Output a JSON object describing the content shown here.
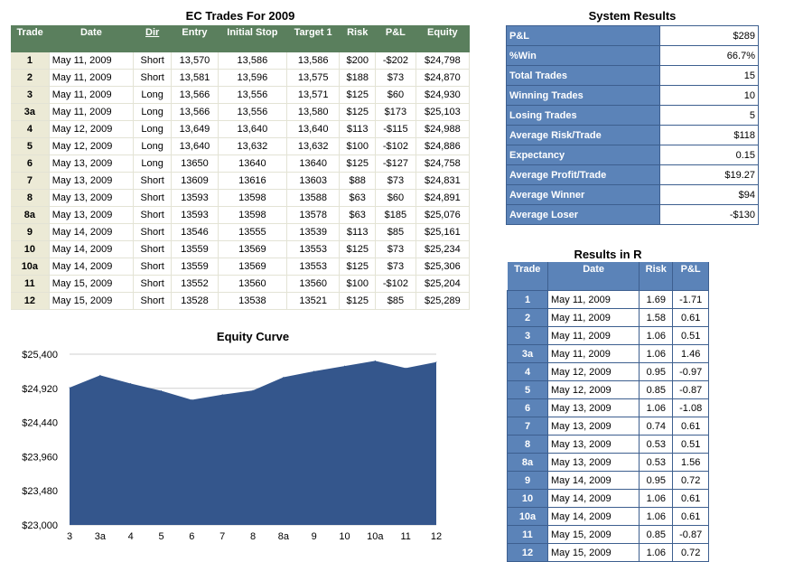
{
  "trades": {
    "title": "EC Trades For 2009",
    "headers": [
      "Trade",
      "Date",
      "Dir",
      "Entry",
      "Initial Stop",
      "Target 1",
      "Risk",
      "P&L",
      "Equity"
    ],
    "rows": [
      [
        "1",
        "May 11, 2009",
        "Short",
        "13,570",
        "13,586",
        "13,586",
        "$200",
        "-$202",
        "$24,798"
      ],
      [
        "2",
        "May 11, 2009",
        "Short",
        "13,581",
        "13,596",
        "13,575",
        "$188",
        "$73",
        "$24,870"
      ],
      [
        "3",
        "May 11, 2009",
        "Long",
        "13,566",
        "13,556",
        "13,571",
        "$125",
        "$60",
        "$24,930"
      ],
      [
        "3a",
        "May 11, 2009",
        "Long",
        "13,566",
        "13,556",
        "13,580",
        "$125",
        "$173",
        "$25,103"
      ],
      [
        "4",
        "May 12, 2009",
        "Long",
        "13,649",
        "13,640",
        "13,640",
        "$113",
        "-$115",
        "$24,988"
      ],
      [
        "5",
        "May 12, 2009",
        "Long",
        "13,640",
        "13,632",
        "13,632",
        "$100",
        "-$102",
        "$24,886"
      ],
      [
        "6",
        "May 13, 2009",
        "Long",
        "13650",
        "13640",
        "13640",
        "$125",
        "-$127",
        "$24,758"
      ],
      [
        "7",
        "May 13, 2009",
        "Short",
        "13609",
        "13616",
        "13603",
        "$88",
        "$73",
        "$24,831"
      ],
      [
        "8",
        "May 13, 2009",
        "Short",
        "13593",
        "13598",
        "13588",
        "$63",
        "$60",
        "$24,891"
      ],
      [
        "8a",
        "May 13, 2009",
        "Short",
        "13593",
        "13598",
        "13578",
        "$63",
        "$185",
        "$25,076"
      ],
      [
        "9",
        "May 14, 2009",
        "Short",
        "13546",
        "13555",
        "13539",
        "$113",
        "$85",
        "$25,161"
      ],
      [
        "10",
        "May 14, 2009",
        "Short",
        "13559",
        "13569",
        "13553",
        "$125",
        "$73",
        "$25,234"
      ],
      [
        "10a",
        "May 14, 2009",
        "Short",
        "13559",
        "13569",
        "13553",
        "$125",
        "$73",
        "$25,306"
      ],
      [
        "11",
        "May 15, 2009",
        "Short",
        "13552",
        "13560",
        "13560",
        "$100",
        "-$102",
        "$25,204"
      ],
      [
        "12",
        "May 15, 2009",
        "Short",
        "13528",
        "13538",
        "13521",
        "$125",
        "$85",
        "$25,289"
      ]
    ]
  },
  "system": {
    "title": "System Results",
    "rows": [
      [
        "P&L",
        "$289"
      ],
      [
        "%Win",
        "66.7%"
      ],
      [
        "Total Trades",
        "15"
      ],
      [
        "Winning Trades",
        "10"
      ],
      [
        "Losing Trades",
        "5"
      ],
      [
        "Average Risk/Trade",
        "$118"
      ],
      [
        "Expectancy",
        "0.15"
      ],
      [
        "Average Profit/Trade",
        "$19.27"
      ],
      [
        "Average Winner",
        "$94"
      ],
      [
        "Average Loser",
        "-$130"
      ]
    ]
  },
  "results_r": {
    "title": "Results in R",
    "headers": [
      "Trade",
      "Date",
      "Risk",
      "P&L"
    ],
    "rows": [
      [
        "1",
        "May 11, 2009",
        "1.69",
        "-1.71"
      ],
      [
        "2",
        "May 11, 2009",
        "1.58",
        "0.61"
      ],
      [
        "3",
        "May 11, 2009",
        "1.06",
        "0.51"
      ],
      [
        "3a",
        "May 11, 2009",
        "1.06",
        "1.46"
      ],
      [
        "4",
        "May 12, 2009",
        "0.95",
        "-0.97"
      ],
      [
        "5",
        "May 12, 2009",
        "0.85",
        "-0.87"
      ],
      [
        "6",
        "May 13, 2009",
        "1.06",
        "-1.08"
      ],
      [
        "7",
        "May 13, 2009",
        "0.74",
        "0.61"
      ],
      [
        "8",
        "May 13, 2009",
        "0.53",
        "0.51"
      ],
      [
        "8a",
        "May 13, 2009",
        "0.53",
        "1.56"
      ],
      [
        "9",
        "May 14, 2009",
        "0.95",
        "0.72"
      ],
      [
        "10",
        "May 14, 2009",
        "1.06",
        "0.61"
      ],
      [
        "10a",
        "May 14, 2009",
        "1.06",
        "0.61"
      ],
      [
        "11",
        "May 15, 2009",
        "0.85",
        "-0.87"
      ],
      [
        "12",
        "May 15, 2009",
        "1.06",
        "0.72"
      ]
    ]
  },
  "colors": {
    "trade_header": "#5a7f5d",
    "trade_index_bg": "#ecead6",
    "blue_accent": "#5b83b8",
    "area_fill": "#34568c"
  },
  "chart_data": {
    "type": "area",
    "title": "Equity Curve",
    "categories": [
      "3",
      "3a",
      "4",
      "5",
      "6",
      "7",
      "8",
      "8a",
      "9",
      "10",
      "10a",
      "11",
      "12"
    ],
    "values": [
      24930,
      25103,
      24988,
      24886,
      24758,
      24831,
      24891,
      25076,
      25161,
      25234,
      25306,
      25204,
      25289
    ],
    "y_ticks": [
      "$23,000",
      "$23,480",
      "$23,960",
      "$24,440",
      "$24,920",
      "$25,400"
    ],
    "ylim": [
      23000,
      25400
    ],
    "grid": true
  }
}
